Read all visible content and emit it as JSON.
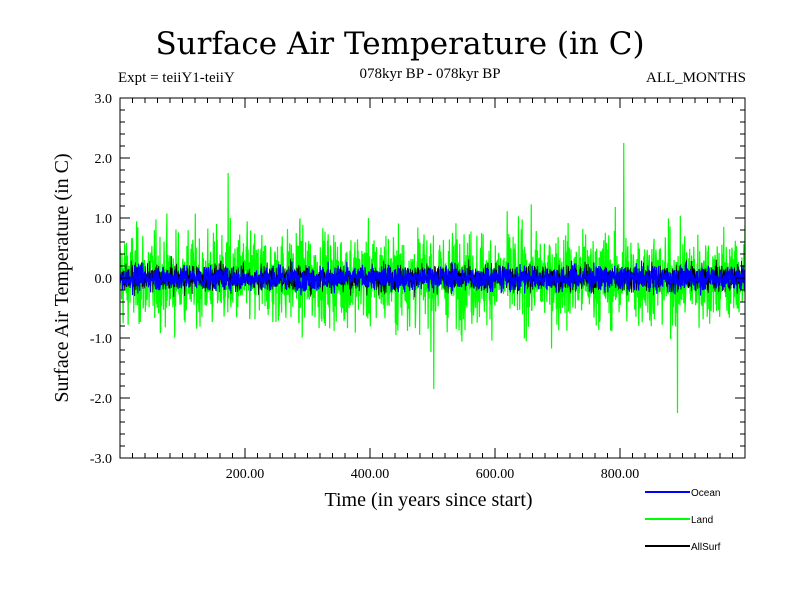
{
  "header": {
    "title": "Surface Air Temperature (in C)",
    "experiment": "Expt = teiiY1-teiiY",
    "period": "078kyr BP - 078kyr BP",
    "months": "ALL_MONTHS"
  },
  "chart_data": {
    "type": "line",
    "title": "Surface Air Temperature (in C)",
    "xlabel": "Time (in years since start)",
    "ylabel": "Surface Air Temperature (in C)",
    "xlim": [
      0,
      1000
    ],
    "ylim": [
      -3.0,
      3.0
    ],
    "x_ticks": [
      200,
      400,
      600,
      800
    ],
    "x_tick_labels": [
      "200.00",
      "400.00",
      "600.00",
      "800.00"
    ],
    "y_ticks": [
      -3,
      -2,
      -1,
      0,
      1,
      2,
      3
    ],
    "y_tick_labels": [
      "-3.0",
      "-2.0",
      "-1.0",
      "0.0",
      "1.0",
      "2.0",
      "3.0"
    ],
    "grid": false,
    "legend_position": "bottom-right",
    "series": [
      {
        "name": "Ocean",
        "color": "#0000ff",
        "style": "noise",
        "range": [
          -0.45,
          0.45
        ],
        "mean": 0.0
      },
      {
        "name": "Land",
        "color": "#00ff00",
        "style": "noise",
        "range": [
          -1.9,
          2.25
        ],
        "mean": 0.0
      },
      {
        "name": "AllSurf",
        "color": "#000000",
        "style": "noise",
        "range": [
          -0.5,
          0.5
        ],
        "mean": 0.0
      }
    ]
  }
}
